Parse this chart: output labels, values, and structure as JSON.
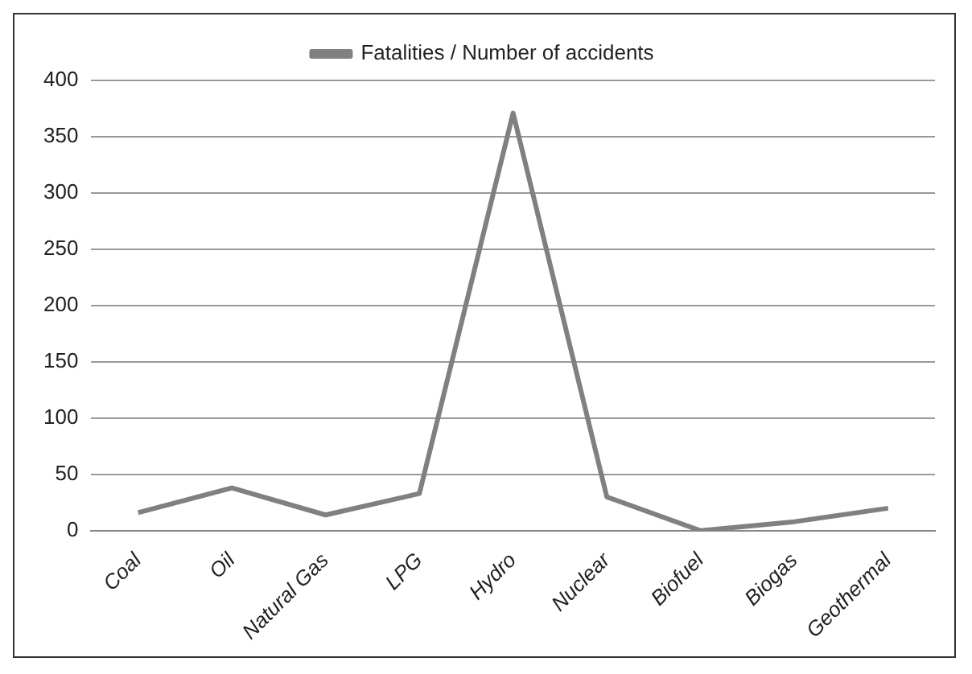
{
  "chart_data": {
    "type": "line",
    "categories": [
      "Coal",
      "Oil",
      "Natural Gas",
      "LPG",
      "Hydro",
      "Nuclear",
      "Biofuel",
      "Biogas",
      "Geothermal"
    ],
    "series": [
      {
        "name": "Fatalities / Number of accidents",
        "color": "#808080",
        "values": [
          16,
          38,
          14,
          33,
          371,
          30,
          0,
          8,
          20
        ]
      }
    ],
    "ylim": [
      0,
      400
    ],
    "yticks": [
      0,
      50,
      100,
      150,
      200,
      250,
      300,
      350,
      400
    ],
    "grid": "y",
    "legend": "top",
    "marker": "none"
  }
}
